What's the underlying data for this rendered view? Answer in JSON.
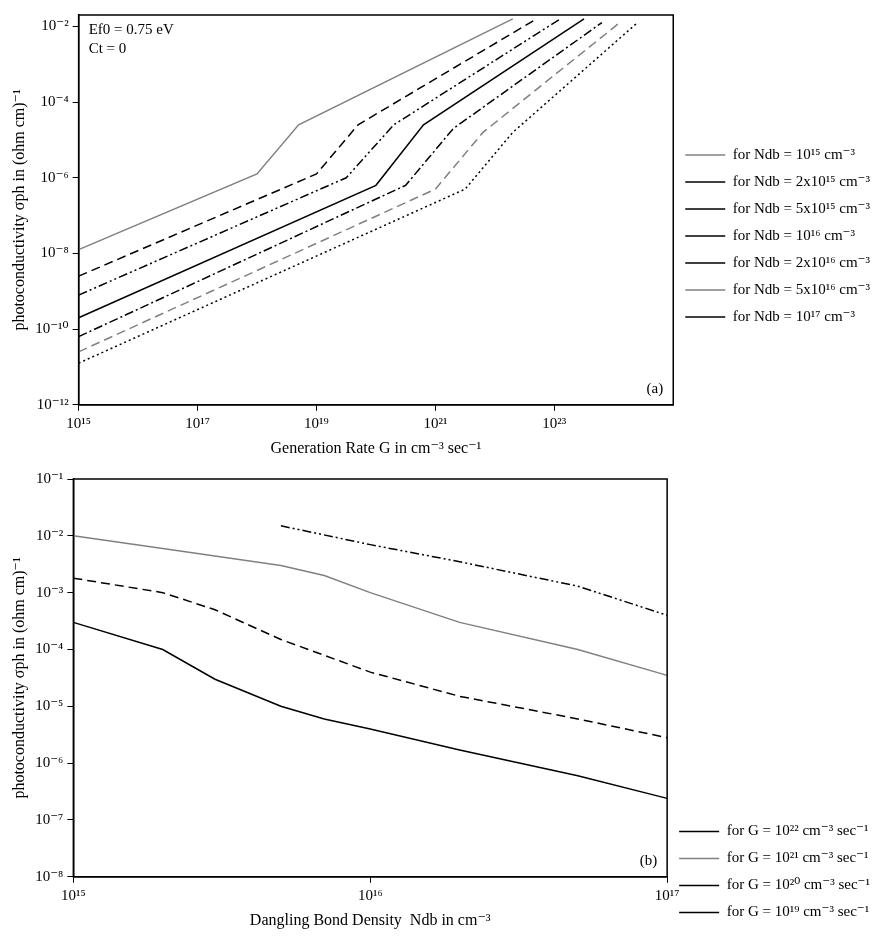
{
  "chart_data": [
    {
      "type": "line",
      "label": "(a)",
      "annotations": [
        "Ef0 = 0.75 eV",
        "Ct = 0"
      ],
      "x_label": "Generation Rate G in cm⁻³ sec⁻¹",
      "y_label": "photoconductivity σph in (ohm cm)⁻¹",
      "log": true,
      "grid": false,
      "legend": "right",
      "xlim": [
        1000000000000000.0,
        1e+25
      ],
      "ylim": [
        1e-12,
        0.02
      ],
      "xticks": [
        {
          "value": 1000000000000000.0,
          "label": "10¹⁵"
        },
        {
          "value": 1e+17,
          "label": "10¹⁷"
        },
        {
          "value": 1e+19,
          "label": "10¹⁹"
        },
        {
          "value": 1e+21,
          "label": "10²¹"
        },
        {
          "value": 1e+23,
          "label": "10²³"
        }
      ],
      "yticks": [
        {
          "value": 1e-12,
          "label": "10⁻¹²"
        },
        {
          "value": 1e-10,
          "label": "10⁻¹⁰"
        },
        {
          "value": 1e-08,
          "label": "10⁻⁸"
        },
        {
          "value": 1e-06,
          "label": "10⁻⁶"
        },
        {
          "value": 0.0001,
          "label": "10⁻⁴"
        },
        {
          "value": 0.01,
          "label": "10⁻²"
        }
      ],
      "series": [
        {
          "name": "for Ndb = 10¹⁵ cm⁻³",
          "color": "#808080",
          "line_style": "solid",
          "x": [
            1000000000000000.0,
            1e+18,
            5.01e+18,
            2e+22
          ],
          "values": [
            1.26e-08,
            1.26e-06,
            2.51e-05,
            0.0158
          ]
        },
        {
          "name": "for Ndb = 2x10¹⁵ cm⁻³",
          "color": "#000000",
          "line_style": "dashed",
          "x": [
            1000000000000000.0,
            1e+19,
            5.01e+19,
            5.01e+22
          ],
          "values": [
            2.51e-09,
            1.26e-06,
            2.51e-05,
            0.0158
          ]
        },
        {
          "name": "for Ndb = 5x10¹⁵ cm⁻³",
          "color": "#000000",
          "line_style": "dashdotdot",
          "x": [
            1000000000000000.0,
            3.16e+19,
            2e+20,
            1.26e+23
          ],
          "values": [
            7.94e-10,
            1e-06,
            2.51e-05,
            0.0158
          ]
        },
        {
          "name": "for Ndb = 10¹⁶ cm⁻³",
          "color": "#000000",
          "line_style": "solid",
          "x": [
            1000000000000000.0,
            1e+20,
            6.31e+20,
            3.16e+23
          ],
          "values": [
            2e-10,
            6.31e-07,
            2.51e-05,
            0.0158
          ]
        },
        {
          "name": "for Ndb = 2x10¹⁶ cm⁻³",
          "color": "#000000",
          "line_style": "dashdot",
          "x": [
            1000000000000000.0,
            3.16e+20,
            2e+21,
            6.31e+23
          ],
          "values": [
            6.31e-11,
            6.31e-07,
            2e-05,
            0.0126
          ]
        },
        {
          "name": "for Ndb = 5x10¹⁶ cm⁻³",
          "color": "#808080",
          "line_style": "dashed",
          "x": [
            1000000000000000.0,
            1e+21,
            6.31e+21,
            1.26e+24
          ],
          "values": [
            2.51e-11,
            5.01e-07,
            1.58e-05,
            0.0126
          ]
        },
        {
          "name": "for Ndb = 10¹⁷ cm⁻³",
          "color": "#000000",
          "line_style": "dotted",
          "x": [
            1000000000000000.0,
            3.16e+21,
            2e+22,
            2.51e+24
          ],
          "values": [
            1.26e-11,
            5.01e-07,
            1.58e-05,
            0.0126
          ]
        }
      ]
    },
    {
      "type": "line",
      "label": "(b)",
      "x_label": "Dangling Bond Density  Ndb in cm⁻³",
      "y_label": "photoconductivity σph in (ohm cm)⁻¹",
      "log": true,
      "grid": false,
      "legend": "lower right",
      "xlim": [
        1000000000000000.0,
        1e+17
      ],
      "ylim": [
        1e-08,
        0.1
      ],
      "xticks": [
        {
          "value": 1000000000000000.0,
          "label": "10¹⁵"
        },
        {
          "value": 1e+16,
          "label": "10¹⁶"
        },
        {
          "value": 1e+17,
          "label": "10¹⁷"
        }
      ],
      "yticks": [
        {
          "value": 1e-08,
          "label": "10⁻⁸"
        },
        {
          "value": 1e-07,
          "label": "10⁻⁷"
        },
        {
          "value": 1e-06,
          "label": "10⁻⁶"
        },
        {
          "value": 1e-05,
          "label": "10⁻⁵"
        },
        {
          "value": 0.0001,
          "label": "10⁻⁴"
        },
        {
          "value": 0.001,
          "label": "10⁻³"
        },
        {
          "value": 0.01,
          "label": "10⁻²"
        },
        {
          "value": 0.1,
          "label": "10⁻¹"
        }
      ],
      "series": [
        {
          "name": "for G = 10²² cm⁻³ sec⁻¹",
          "color": "#000000",
          "line_style": "dashdotdot",
          "x": [
            5000000000000000.0,
            1e+16,
            2e+16,
            5e+16,
            1e+17
          ],
          "values": [
            0.015,
            0.007,
            0.0035,
            0.0013,
            0.0004
          ]
        },
        {
          "name": "for G = 10²¹ cm⁻³ sec⁻¹",
          "color": "#808080",
          "line_style": "solid",
          "x": [
            1000000000000000.0,
            2000000000000000.0,
            5000000000000000.0,
            7000000000000000.0,
            1e+16,
            2e+16,
            5e+16,
            1e+17
          ],
          "values": [
            0.01,
            0.006,
            0.003,
            0.002,
            0.001,
            0.0003,
            0.0001,
            3.5e-05
          ]
        },
        {
          "name": "for G = 10²⁰ cm⁻³ sec⁻¹",
          "color": "#000000",
          "line_style": "dashed",
          "x": [
            1000000000000000.0,
            2000000000000000.0,
            3000000000000000.0,
            5000000000000000.0,
            1e+16,
            2e+16,
            5e+16,
            1e+17
          ],
          "values": [
            0.0018,
            0.001,
            0.0005,
            0.00015,
            4e-05,
            1.5e-05,
            6e-06,
            2.8e-06
          ]
        },
        {
          "name": "for G = 10¹⁹ cm⁻³ sec⁻¹",
          "color": "#000000",
          "line_style": "solid",
          "x": [
            1000000000000000.0,
            2000000000000000.0,
            3000000000000000.0,
            5000000000000000.0,
            7000000000000000.0,
            1e+16,
            2e+16,
            5e+16,
            1e+17
          ],
          "values": [
            0.0003,
            0.0001,
            3e-05,
            1e-05,
            6e-06,
            4e-06,
            1.7e-06,
            6e-07,
            2.4e-07
          ]
        }
      ]
    }
  ]
}
